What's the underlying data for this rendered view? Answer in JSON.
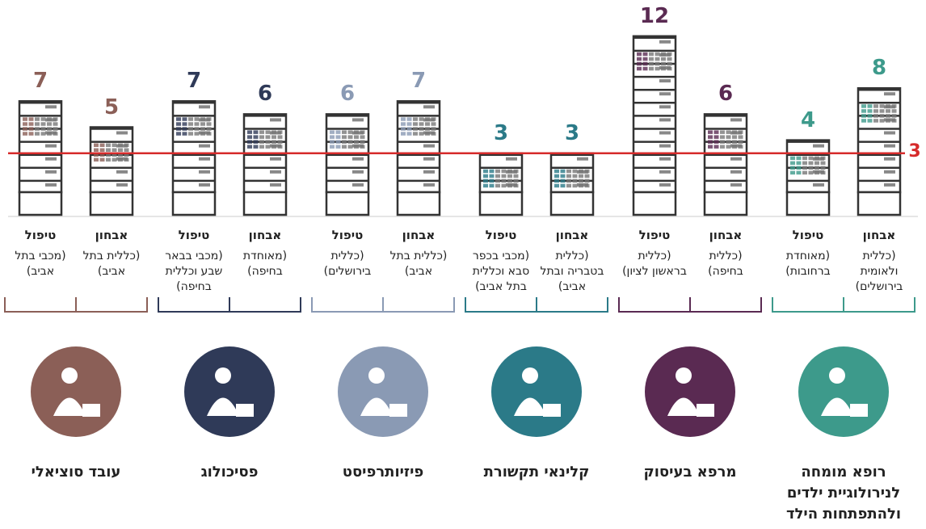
{
  "chart_data": {
    "type": "bar",
    "reference_line": {
      "value": 3,
      "color": "#d62b2b"
    },
    "groups": [
      {
        "name": "רופא מומחה לנירולוגיית ילדים ולהתפתחות הילד",
        "color": "#3d9a8b",
        "bars": [
          {
            "label": "אבחון",
            "subtitle": "(כללית ולאומית בירושלים)",
            "value": 8
          },
          {
            "label": "טיפול",
            "subtitle": "(מאוחדת ברחובות)",
            "value": 4
          }
        ]
      },
      {
        "name": "מרפא בעיסוק",
        "color": "#5a2a52",
        "bars": [
          {
            "label": "אבחון",
            "subtitle": "(כללית בחיפה)",
            "value": 6
          },
          {
            "label": "טיפול",
            "subtitle": "(כללית בראשון לציון)",
            "value": 12
          }
        ]
      },
      {
        "name": "קלינאי תקשורת",
        "color": "#2b7a88",
        "bars": [
          {
            "label": "אבחון",
            "subtitle": "(כללית בטבריה ובתל אביב)",
            "value": 3
          },
          {
            "label": "טיפול",
            "subtitle": "(מכבי בכפר סבא וכללית בתל אביב)",
            "value": 3
          }
        ]
      },
      {
        "name": "פיזיותרפיסט",
        "color": "#8a9ab4",
        "bars": [
          {
            "label": "אבחון",
            "subtitle": "(כללית בתל אביב)",
            "value": 7
          },
          {
            "label": "טיפול",
            "subtitle": "(כללית בירושלים)",
            "value": 6
          }
        ]
      },
      {
        "name": "פסיכולוג",
        "color": "#2f3a58",
        "bars": [
          {
            "label": "אבחון",
            "subtitle": "(מאוחדת בחיפה)",
            "value": 6
          },
          {
            "label": "טיפול",
            "subtitle": "(מכבי בבאר שבע וכללית בחיפה)",
            "value": 7
          }
        ]
      },
      {
        "name": "עובד סוציאלי",
        "color": "#8b5f57",
        "bars": [
          {
            "label": "אבחון",
            "subtitle": "(כללית בתל אביב)",
            "value": 5
          },
          {
            "label": "טיפול",
            "subtitle": "(מכבי בתל אביב)",
            "value": 7
          }
        ]
      }
    ]
  }
}
